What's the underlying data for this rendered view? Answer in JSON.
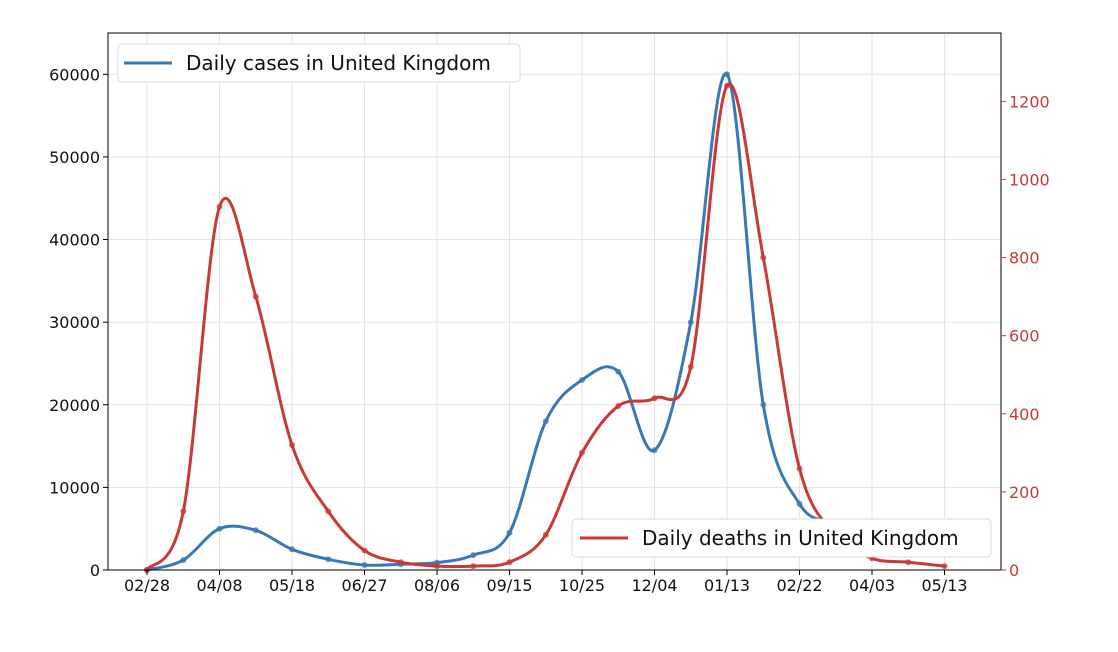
{
  "chart_data": {
    "type": "line",
    "x": [
      "02/28",
      "03/19",
      "04/08",
      "04/28",
      "05/18",
      "06/07",
      "06/27",
      "07/17",
      "08/06",
      "08/26",
      "09/15",
      "10/05",
      "10/25",
      "11/14",
      "12/04",
      "12/24",
      "01/13",
      "02/02",
      "02/22",
      "03/14",
      "04/03",
      "04/23",
      "05/13"
    ],
    "xticks": [
      "02/28",
      "04/08",
      "05/18",
      "06/27",
      "08/06",
      "09/15",
      "10/25",
      "12/04",
      "01/13",
      "02/22",
      "04/03",
      "05/13"
    ],
    "ylim_left": [
      0,
      65000
    ],
    "ylim_right": [
      0,
      1375
    ],
    "yticks_left": [
      0,
      10000,
      20000,
      30000,
      40000,
      50000,
      60000
    ],
    "yticks_left_labels": [
      "0",
      "10000",
      "20000",
      "30000",
      "40000",
      "50000",
      "60000"
    ],
    "yticks_right": [
      0,
      200,
      400,
      600,
      800,
      1000,
      1200
    ],
    "yticks_right_labels": [
      "0",
      "200",
      "400",
      "600",
      "800",
      "1000",
      "1200"
    ],
    "grid": true,
    "series": [
      {
        "name": "Daily cases in United Kingdom",
        "axis": "left",
        "color": "#3a78b5",
        "legend_position": "top-left",
        "values": [
          0,
          1200,
          5000,
          4800,
          2500,
          1300,
          600,
          700,
          900,
          1800,
          4500,
          18000,
          23000,
          24000,
          14500,
          30000,
          60000,
          20000,
          8000,
          5500,
          3000,
          2500,
          2000
        ]
      },
      {
        "name": "Daily deaths in United Kingdom",
        "axis": "right",
        "color": "#c83a36",
        "legend_position": "bottom-right",
        "values": [
          0,
          150,
          930,
          700,
          320,
          150,
          50,
          20,
          10,
          10,
          20,
          90,
          300,
          420,
          440,
          520,
          1240,
          800,
          260,
          90,
          30,
          20,
          10
        ]
      }
    ]
  }
}
